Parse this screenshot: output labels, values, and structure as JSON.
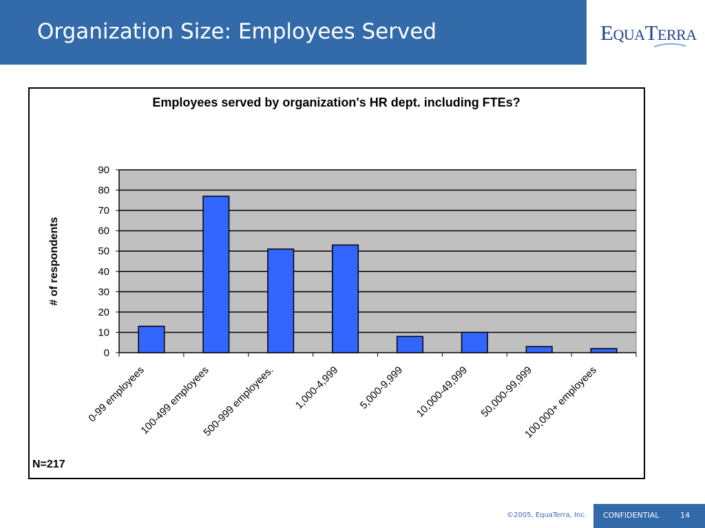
{
  "slide": {
    "title": "Organization Size: Employees Served",
    "logo_text": "EQUATERRA",
    "logo_prefix_E": "E",
    "logo_mid_QUA": "QUA",
    "logo_T": "T",
    "logo_end_ERRA": "ERRA"
  },
  "footer": {
    "copyright": "©2005, EquaTerra, Inc.",
    "confidential": "CONFIDENTIAL",
    "page_number": "14"
  },
  "colors": {
    "header_bg": "#336aaa",
    "plot_bg": "#c0c0c0",
    "bar_fill": "#3366ff"
  },
  "chart_data": {
    "type": "bar",
    "title": "Employees served by organization's HR dept. including FTEs?",
    "xlabel": "",
    "ylabel": "# of respondents",
    "ylim": [
      0,
      90
    ],
    "yticks": [
      0,
      10,
      20,
      30,
      40,
      50,
      60,
      70,
      80,
      90
    ],
    "grid": true,
    "categories": [
      "0-99 employees",
      "100-499 employees",
      "500-999 employees.",
      "1,000-4,999",
      "5,000-9,999",
      "10,000-49,999",
      "50,000-99,999",
      "100,000+ employees"
    ],
    "values": [
      13,
      77,
      51,
      53,
      8,
      10,
      3,
      2
    ],
    "annotation": "N=217"
  }
}
